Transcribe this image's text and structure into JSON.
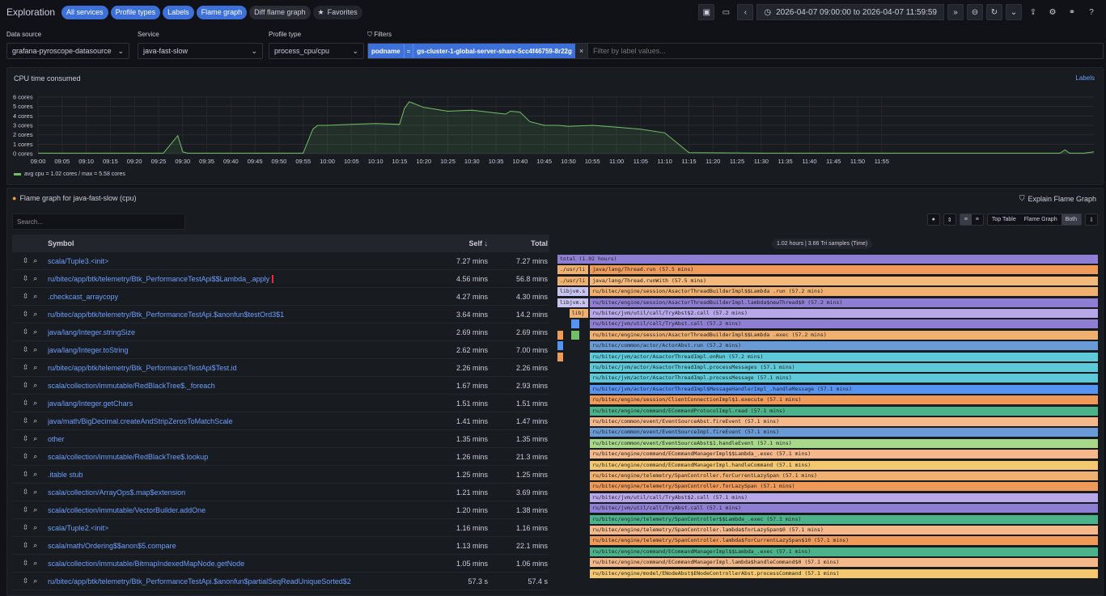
{
  "topbar": {
    "title": "Exploration",
    "tabs": [
      {
        "label": "All services",
        "active": true
      },
      {
        "label": "Profile types",
        "active": true
      },
      {
        "label": "Labels",
        "active": true
      },
      {
        "label": "Flame graph",
        "active": true
      },
      {
        "label": "Diff flame graph",
        "active": false
      }
    ],
    "favorites": "Favorites",
    "time_range": "2026-04-07 09:00:00 to 2026-04-07 11:59:59"
  },
  "filters": {
    "data_source_label": "Data source",
    "data_source": "grafana-pyroscope-datasource",
    "service_label": "Service",
    "service": "java-fast-slow",
    "profile_type_label": "Profile type",
    "profile_type": "process_cpu/cpu",
    "filters_label": "Filters",
    "chip_key": "podname",
    "chip_op": "=",
    "chip_value": "gs-cluster-1-global-server-share-5cc4f46759-8r22g",
    "chip_remove": "×",
    "placeholder": "Filter by label values..."
  },
  "timeseries": {
    "title": "CPU time consumed",
    "labels_link": "Labels",
    "legend": "avg cpu = 1.02 cores / max = 5.58 cores"
  },
  "chart_data": {
    "type": "area",
    "title": "CPU time consumed",
    "ylim": [
      0,
      6
    ],
    "y_ticks": [
      "0 cores",
      "1 cores",
      "2 cores",
      "3 cores",
      "4 cores",
      "5 cores",
      "6 cores"
    ],
    "x_ticks": [
      "09:00",
      "09:05",
      "09:10",
      "09:15",
      "09:20",
      "09:25",
      "09:30",
      "09:35",
      "09:40",
      "09:45",
      "09:50",
      "09:55",
      "10:00",
      "10:05",
      "10:10",
      "10:15",
      "10:20",
      "10:25",
      "10:30",
      "10:35",
      "10:40",
      "10:45",
      "10:50",
      "10:55",
      "11:00",
      "11:05",
      "11:10",
      "11:15",
      "11:20",
      "11:25",
      "11:30",
      "11:35",
      "11:40",
      "11:45",
      "11:50",
      "11:55"
    ],
    "series": [
      {
        "name": "avg cpu",
        "color": "#73bf69",
        "x_minutes": [
          0,
          26,
          29,
          30,
          31,
          32,
          55,
          57,
          58,
          60,
          65,
          70,
          75,
          76,
          77,
          80,
          85,
          90,
          95,
          97,
          98,
          100,
          102,
          105,
          106,
          107,
          108,
          110,
          115,
          120,
          125,
          130,
          135,
          150,
          155,
          160,
          165,
          170,
          175,
          176,
          177,
          180,
          185,
          190,
          195,
          200,
          212,
          213,
          214,
          215,
          217,
          219
        ],
        "values": [
          0.05,
          0.05,
          1.9,
          0.2,
          0.05,
          0.05,
          0.05,
          2.6,
          3.0,
          3.0,
          3.1,
          3.2,
          3.1,
          4.8,
          5.5,
          4.9,
          4.5,
          4.6,
          4.3,
          4.2,
          4.5,
          4.4,
          3.4,
          3.0,
          3.0,
          3.0,
          3.0,
          2.9,
          3.0,
          2.8,
          2.6,
          2.2,
          0.1,
          0.05,
          0.05,
          0.05,
          0.05,
          0.05,
          0.05,
          0.05,
          0.05,
          0.05,
          0.05,
          0.05,
          0.05,
          0.05,
          0.05,
          0.4,
          0.05,
          0.05,
          0.05,
          0.2
        ]
      }
    ],
    "legend": "avg cpu = 1.02 cores / max = 5.58 cores"
  },
  "flame": {
    "title": "Flame graph for java-fast-slow (cpu)",
    "explain": "Explain Flame Graph",
    "search_placeholder": "Search...",
    "views": [
      "Top Table",
      "Flame Graph",
      "Both"
    ],
    "meta": "1.02 hours | 3.66 Tri samples (Time)"
  },
  "table": {
    "headers": {
      "symbol": "Symbol",
      "self": "Self",
      "total": "Total"
    },
    "rows": [
      {
        "symbol": "scala/Tuple3.<init>",
        "self": "7.27 mins",
        "total": "7.27 mins"
      },
      {
        "symbol": "ru/bitec/app/btk/telemetry/Btk_PerformanceTestApi$$Lambda_.apply",
        "self": "4.56 mins",
        "total": "56.8 mins",
        "highlight": true
      },
      {
        "symbol": ".checkcast_arraycopy",
        "self": "4.27 mins",
        "total": "4.30 mins"
      },
      {
        "symbol": "ru/bitec/app/btk/telemetry/Btk_PerformanceTestApi.$anonfun$testOrd3$1",
        "self": "3.64 mins",
        "total": "14.2 mins"
      },
      {
        "symbol": "java/lang/Integer.stringSize",
        "self": "2.69 mins",
        "total": "2.69 mins"
      },
      {
        "symbol": "java/lang/Integer.toString",
        "self": "2.62 mins",
        "total": "7.00 mins"
      },
      {
        "symbol": "ru/bitec/app/btk/telemetry/Btk_PerformanceTestApi$Test.id",
        "self": "2.26 mins",
        "total": "2.26 mins"
      },
      {
        "symbol": "scala/collection/immutable/RedBlackTree$._foreach",
        "self": "1.67 mins",
        "total": "2.93 mins"
      },
      {
        "symbol": "java/lang/Integer.getChars",
        "self": "1.51 mins",
        "total": "1.51 mins"
      },
      {
        "symbol": "java/math/BigDecimal.createAndStripZerosToMatchScale",
        "self": "1.41 mins",
        "total": "1.47 mins"
      },
      {
        "symbol": "other",
        "self": "1.35 mins",
        "total": "1.35 mins"
      },
      {
        "symbol": "scala/collection/immutable/RedBlackTree$.lookup",
        "self": "1.26 mins",
        "total": "21.3 mins"
      },
      {
        "symbol": ".itable stub",
        "self": "1.25 mins",
        "total": "1.25 mins"
      },
      {
        "symbol": "scala/collection/ArrayOps$.map$extension",
        "self": "1.21 mins",
        "total": "3.69 mins"
      },
      {
        "symbol": "scala/collection/immutable/VectorBuilder.addOne",
        "self": "1.20 mins",
        "total": "1.38 mins"
      },
      {
        "symbol": "scala/Tuple2.<init>",
        "self": "1.16 mins",
        "total": "1.16 mins"
      },
      {
        "symbol": "scala/math/Ordering$$anon$5.compare",
        "self": "1.13 mins",
        "total": "22.1 mins"
      },
      {
        "symbol": "scala/collection/immutable/BitmapIndexedMapNode.getNode",
        "self": "1.05 mins",
        "total": "1.06 mins"
      },
      {
        "symbol": "ru/bitec/app/btk/telemetry/Btk_PerformanceTestApi.$anonfun$partialSeqReadUniqueSorted$2",
        "self": "57.3 s",
        "total": "57.4 s"
      }
    ]
  },
  "flame_bars": [
    {
      "label": "total (1.02 hours)",
      "color": "#8f7fd4",
      "level": 0,
      "start": 0.0,
      "width": 1.0
    },
    {
      "label": "./usr/li",
      "color": "#f0b070",
      "level": 1,
      "start": 0.0,
      "width": 0.058
    },
    {
      "label": "java/lang/Thread.run (57.5 mins)",
      "color": "#f09a5a",
      "level": 1,
      "start": 0.06,
      "width": 0.94
    },
    {
      "label": "./usr/li",
      "color": "#f0b070",
      "level": 2,
      "start": 0.0,
      "width": 0.058
    },
    {
      "label": "java/lang/Thread.runWith (57.5 mins)",
      "color": "#f4b87a",
      "level": 2,
      "start": 0.06,
      "width": 0.94
    },
    {
      "label": "libjvm.s",
      "color": "#c9c3ef",
      "level": 3,
      "start": 0.0,
      "width": 0.058
    },
    {
      "label": "ru/bitec/engine/session/AsactorThreadBuilderImpl$$Lambda .run (57.2 mins)",
      "color": "#f0b070",
      "level": 3,
      "start": 0.06,
      "width": 0.94
    },
    {
      "label": "libjvm.s",
      "color": "#c9c3ef",
      "level": 4,
      "start": 0.0,
      "width": 0.058
    },
    {
      "label": "ru/bitec/engine/session/AsactorThreadBuilderImpl.lambda$newThread$0 (57.2 mins)",
      "color": "#8f7fd4",
      "level": 4,
      "start": 0.06,
      "width": 0.94
    },
    {
      "label": "libj",
      "color": "#f0b070",
      "level": 5,
      "start": 0.022,
      "width": 0.036
    },
    {
      "label": "ru/bitec/jvm/util/call/TryAbst$2.call (57.2 mins)",
      "color": "#b8a8ea",
      "level": 5,
      "start": 0.06,
      "width": 0.94
    },
    {
      "label": "",
      "color": "#5794f2",
      "level": 6,
      "start": 0.026,
      "width": 0.016
    },
    {
      "label": "ru/bitec/jvm/util/call/TryAbst.call (57.2 mins)",
      "color": "#8f7fd4",
      "level": 6,
      "start": 0.06,
      "width": 0.94
    },
    {
      "label": "",
      "color": "#f09a5a",
      "level": 7,
      "start": 0.0,
      "width": 0.012
    },
    {
      "label": "",
      "color": "#73bf69",
      "level": 7,
      "start": 0.026,
      "width": 0.016
    },
    {
      "label": "ru/bitec/engine/session/AsactorThreadBuilderImpl$$Lambda .exec (57.2 mins)",
      "color": "#f0b070",
      "level": 7,
      "start": 0.06,
      "width": 0.94
    },
    {
      "label": "",
      "color": "#5794f2",
      "level": 8,
      "start": 0.0,
      "width": 0.012
    },
    {
      "label": "ru/bitec/common/actor/ActorAbst.run (57.2 mins)",
      "color": "#6b9bd6",
      "level": 8,
      "start": 0.06,
      "width": 0.94
    },
    {
      "label": "",
      "color": "#f09a5a",
      "level": 9,
      "start": 0.0,
      "width": 0.012
    },
    {
      "label": "ru/bitec/jvm/actor/AsactorThreadImpl.onRun (57.2 mins)",
      "color": "#5ec9d9",
      "level": 9,
      "start": 0.06,
      "width": 0.94
    },
    {
      "label": "ru/bitec/jvm/actor/AsactorThreadImpl.processMessages (57.1 mins)",
      "color": "#5ec9d9",
      "level": 10,
      "start": 0.06,
      "width": 0.94
    },
    {
      "label": "ru/bitec/jvm/actor/AsactorThreadImpl.processMessage (57.1 mins)",
      "color": "#5ec9d9",
      "level": 11,
      "start": 0.06,
      "width": 0.94
    },
    {
      "label": "ru/bitec/jvm/actor/AsactorThreadImpl$MessageHandlerImpl_.handleMessage (57.1 mins)",
      "color": "#5794f2",
      "level": 12,
      "start": 0.06,
      "width": 0.94
    },
    {
      "label": "ru/bitec/engine/session/ClientConnectionImpl$1.execute (57.1 mins)",
      "color": "#f09a5a",
      "level": 13,
      "start": 0.06,
      "width": 0.94
    },
    {
      "label": "ru/bitec/engine/command/ECommandProtocolImpl.read (57.1 mins)",
      "color": "#4cb28a",
      "level": 14,
      "start": 0.06,
      "width": 0.94
    },
    {
      "label": "ru/bitec/common/event/EventSourceAbst.fireEvent (57.1 mins)",
      "color": "#f4b88a",
      "level": 15,
      "start": 0.06,
      "width": 0.94
    },
    {
      "label": "ru/bitec/common/event/EventSourceImpl.fireEvent (57.1 mins)",
      "color": "#6b9bd6",
      "level": 16,
      "start": 0.06,
      "width": 0.94
    },
    {
      "label": "ru/bitec/common/event/EventSourceAbst$1.handleEvent (57.1 mins)",
      "color": "#a8d88a",
      "level": 17,
      "start": 0.06,
      "width": 0.94
    },
    {
      "label": "ru/bitec/engine/command/ECommandManagerImpl$$Lambda_.exec (57.1 mins)",
      "color": "#f4b88a",
      "level": 18,
      "start": 0.06,
      "width": 0.94
    },
    {
      "label": "ru/bitec/engine/command/ECommandManagerImpl.handleCommand (57.1 mins)",
      "color": "#f4c870",
      "level": 19,
      "start": 0.06,
      "width": 0.94
    },
    {
      "label": "ru/bitec/engine/telemetry/SpanController.forCurrentLazySpan (57.1 mins)",
      "color": "#f0b070",
      "level": 20,
      "start": 0.06,
      "width": 0.94
    },
    {
      "label": "ru/bitec/engine/telemetry/SpanController.forLazySpan (57.1 mins)",
      "color": "#f09a5a",
      "level": 21,
      "start": 0.06,
      "width": 0.94
    },
    {
      "label": "ru/bitec/jvm/util/call/TryAbst$2.call (57.1 mins)",
      "color": "#b8a8ea",
      "level": 22,
      "start": 0.06,
      "width": 0.94
    },
    {
      "label": "ru/bitec/jvm/util/call/TryAbst.call (57.1 mins)",
      "color": "#8f7fd4",
      "level": 23,
      "start": 0.06,
      "width": 0.94
    },
    {
      "label": "ru/bitec/engine/telemetry/SpanController$$Lambda_.exec (57.1 mins)",
      "color": "#4cb28a",
      "level": 24,
      "start": 0.06,
      "width": 0.94
    },
    {
      "label": "ru/bitec/engine/telemetry/SpanController.lambda$forLazySpan$0 (57.1 mins)",
      "color": "#f4b88a",
      "level": 25,
      "start": 0.06,
      "width": 0.94
    },
    {
      "label": "ru/bitec/engine/telemetry/SpanController.lambda$forCurrentLazySpan$10 (57.1 mins)",
      "color": "#f09a5a",
      "level": 26,
      "start": 0.06,
      "width": 0.94
    },
    {
      "label": "ru/bitec/engine/command/ECommandManagerImpl$$Lambda_.exec (57.1 mins)",
      "color": "#4cb28a",
      "level": 27,
      "start": 0.06,
      "width": 0.94
    },
    {
      "label": "ru/bitec/engine/command/ECommandManagerImpl.lambda$handleCommand$0 (57.1 mins)",
      "color": "#f4b88a",
      "level": 28,
      "start": 0.06,
      "width": 0.94
    },
    {
      "label": "ru/bitec/engine/model/ENodeAbst$ENodeControllerAbst.processCommand (57.1 mins)",
      "color": "#f4c870",
      "level": 29,
      "start": 0.06,
      "width": 0.94
    }
  ]
}
